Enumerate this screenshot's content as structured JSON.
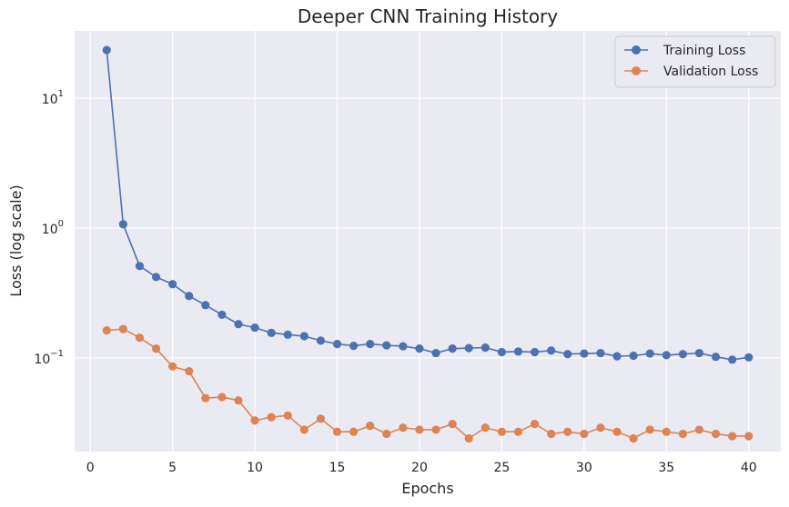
{
  "chart_data": {
    "type": "line",
    "title": "Deeper CNN Training History",
    "xlabel": "Epochs",
    "ylabel": "Loss (log scale)",
    "yscale": "log",
    "xlim": [
      -0.95,
      41.95
    ],
    "ylim": [
      0.019,
      33
    ],
    "xticks": [
      0,
      5,
      10,
      15,
      20,
      25,
      30,
      35,
      40
    ],
    "yticks": [
      {
        "value": 10,
        "base": "10",
        "exp": "1"
      },
      {
        "value": 1,
        "base": "10",
        "exp": "0"
      },
      {
        "value": 0.1,
        "base": "10",
        "exp": "−1"
      }
    ],
    "grid": true,
    "legend": "top-right",
    "x": [
      1,
      2,
      3,
      4,
      5,
      6,
      7,
      8,
      9,
      10,
      11,
      12,
      13,
      14,
      15,
      16,
      17,
      18,
      19,
      20,
      21,
      22,
      23,
      24,
      25,
      26,
      27,
      28,
      29,
      30,
      31,
      32,
      33,
      34,
      35,
      36,
      37,
      38,
      39,
      40
    ],
    "series": [
      {
        "name": "Training Loss",
        "color": "#4c72b0",
        "values": [
          23.5,
          1.07,
          0.51,
          0.42,
          0.37,
          0.3,
          0.255,
          0.215,
          0.182,
          0.171,
          0.156,
          0.151,
          0.147,
          0.136,
          0.128,
          0.124,
          0.128,
          0.125,
          0.123,
          0.118,
          0.109,
          0.118,
          0.119,
          0.12,
          0.111,
          0.112,
          0.111,
          0.114,
          0.107,
          0.108,
          0.109,
          0.103,
          0.104,
          0.108,
          0.105,
          0.107,
          0.109,
          0.102,
          0.097,
          0.101
        ]
      },
      {
        "name": "Validation Loss",
        "color": "#dd8452",
        "values": [
          0.163,
          0.167,
          0.143,
          0.118,
          0.086,
          0.079,
          0.049,
          0.05,
          0.047,
          0.033,
          0.035,
          0.036,
          0.028,
          0.034,
          0.027,
          0.027,
          0.03,
          0.026,
          0.029,
          0.028,
          0.028,
          0.031,
          0.024,
          0.029,
          0.027,
          0.027,
          0.031,
          0.026,
          0.027,
          0.026,
          0.029,
          0.027,
          0.024,
          0.028,
          0.027,
          0.026,
          0.028,
          0.026,
          0.025,
          0.025
        ]
      }
    ]
  }
}
